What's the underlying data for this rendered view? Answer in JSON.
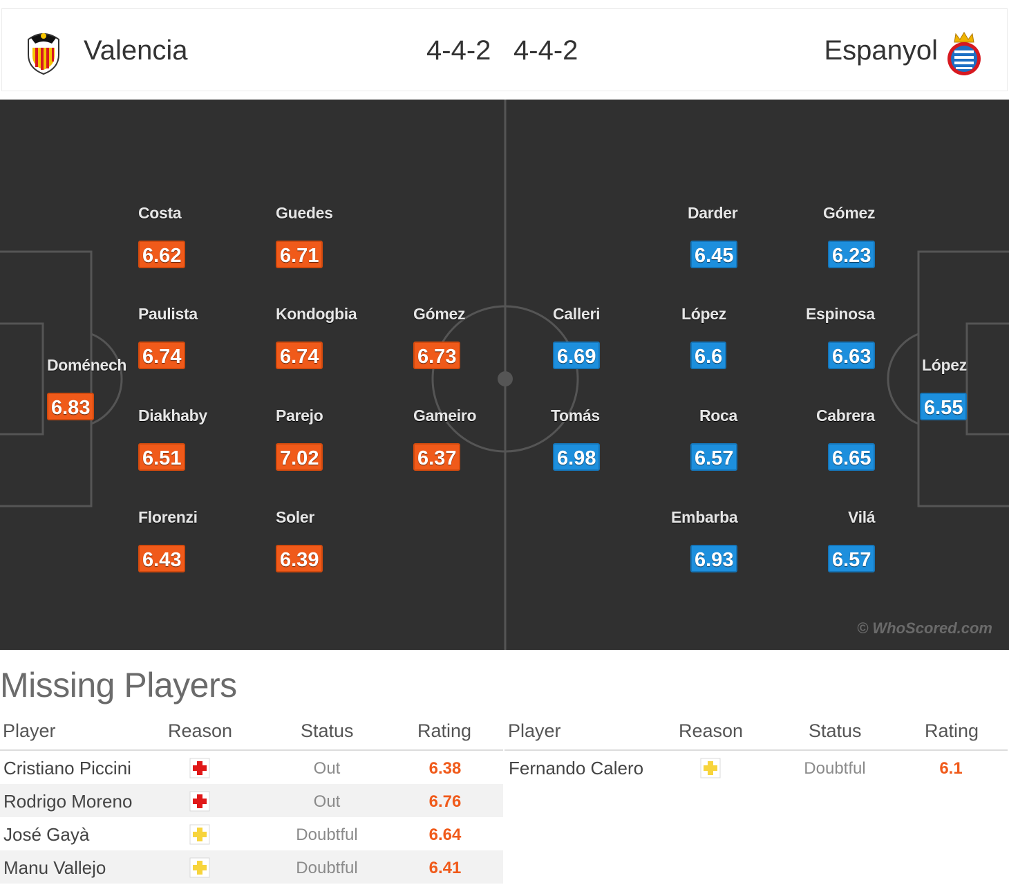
{
  "header": {
    "home_team": "Valencia",
    "home_formation": "4-4-2",
    "away_formation": "4-4-2",
    "away_team": "Espanyol"
  },
  "colors": {
    "home_rating": "#f05a1a",
    "away_rating": "#1d8fdd",
    "pitch": "#303030"
  },
  "home_players": [
    {
      "name": "Doménech",
      "rating": "6.83"
    },
    {
      "name": "Costa",
      "rating": "6.62"
    },
    {
      "name": "Paulista",
      "rating": "6.74"
    },
    {
      "name": "Diakhaby",
      "rating": "6.51"
    },
    {
      "name": "Florenzi",
      "rating": "6.43"
    },
    {
      "name": "Guedes",
      "rating": "6.71"
    },
    {
      "name": "Kondogbia",
      "rating": "6.74"
    },
    {
      "name": "Parejo",
      "rating": "7.02"
    },
    {
      "name": "Soler",
      "rating": "6.39"
    },
    {
      "name": "Gómez",
      "rating": "6.73"
    },
    {
      "name": "Gameiro",
      "rating": "6.37"
    }
  ],
  "away_players": [
    {
      "name": "Calleri",
      "rating": "6.69"
    },
    {
      "name": "Tomás",
      "rating": "6.98"
    },
    {
      "name": "Darder",
      "rating": "6.45"
    },
    {
      "name": "López",
      "rating": "6.6"
    },
    {
      "name": "Roca",
      "rating": "6.57"
    },
    {
      "name": "Embarba",
      "rating": "6.93"
    },
    {
      "name": "Gómez",
      "rating": "6.23"
    },
    {
      "name": "Espinosa",
      "rating": "6.63"
    },
    {
      "name": "Cabrera",
      "rating": "6.65"
    },
    {
      "name": "Vilá",
      "rating": "6.57"
    },
    {
      "name": "López",
      "rating": "6.55"
    }
  ],
  "watermark": "© WhoScored.com",
  "missing": {
    "title": "Missing Players",
    "columns": {
      "player": "Player",
      "reason": "Reason",
      "status": "Status",
      "rating": "Rating"
    },
    "home": [
      {
        "name": "Cristiano Piccini",
        "reason_icon": "injury-icon",
        "status": "Out",
        "rating": "6.38"
      },
      {
        "name": "Rodrigo Moreno",
        "reason_icon": "injury-icon",
        "status": "Out",
        "rating": "6.76"
      },
      {
        "name": "José Gayà",
        "reason_icon": "doubtful-icon",
        "status": "Doubtful",
        "rating": "6.64"
      },
      {
        "name": "Manu Vallejo",
        "reason_icon": "doubtful-icon",
        "status": "Doubtful",
        "rating": "6.41"
      }
    ],
    "away": [
      {
        "name": "Fernando Calero",
        "reason_icon": "doubtful-icon",
        "status": "Doubtful",
        "rating": "6.1"
      }
    ]
  }
}
